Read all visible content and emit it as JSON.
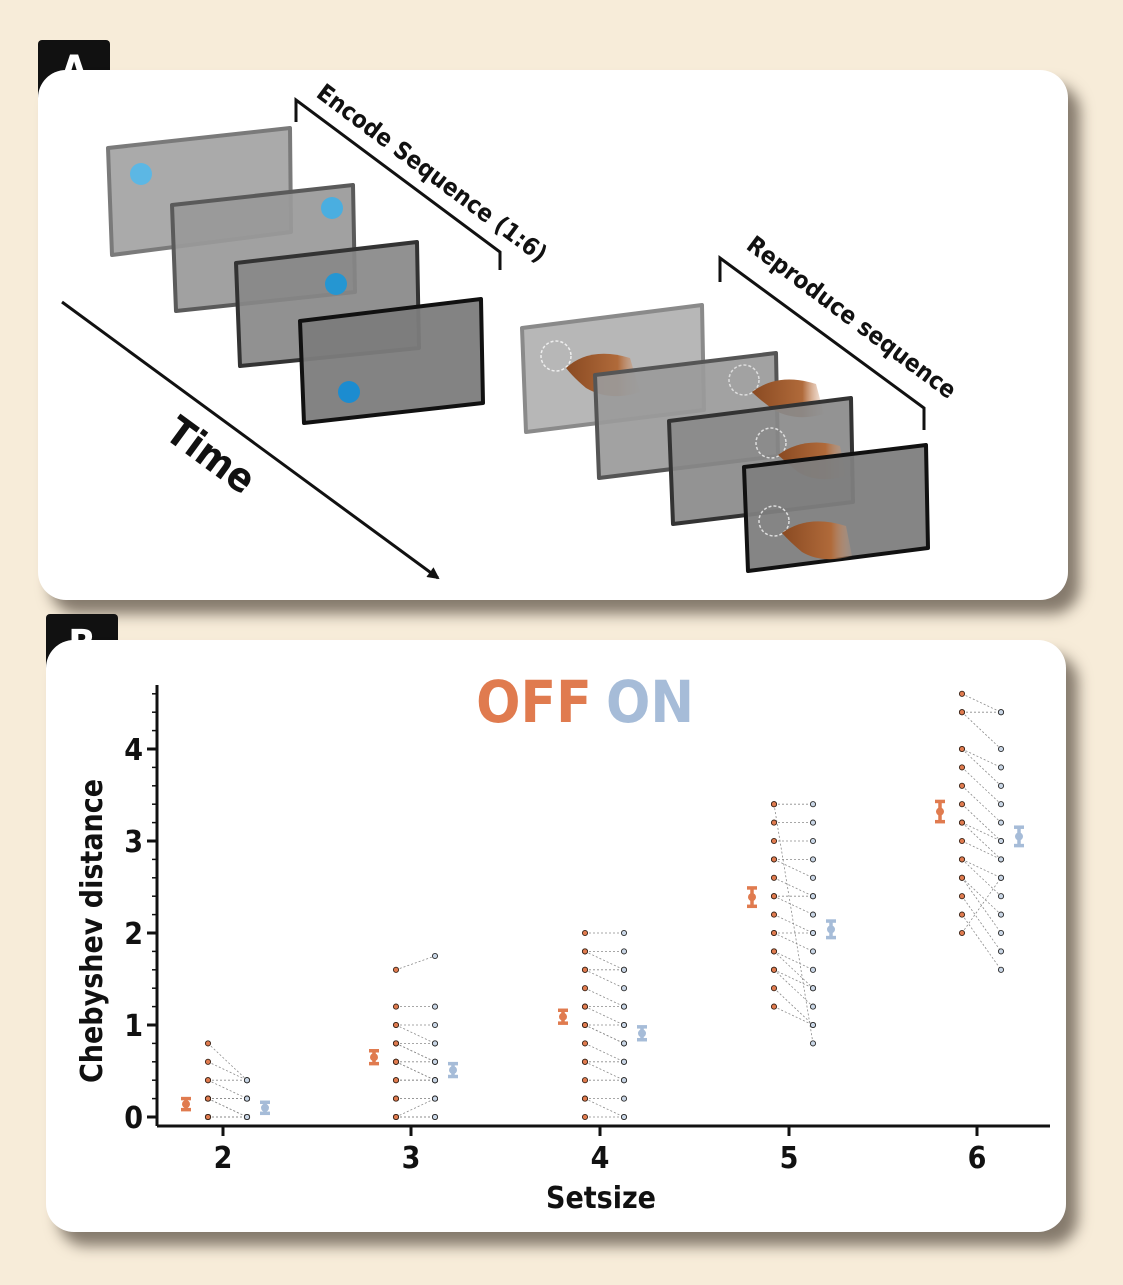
{
  "panel_a": {
    "badge": "A",
    "encode_label": "Encode Sequence (1:6)",
    "reproduce_label": "Reproduce sequence",
    "time_label": "Time"
  },
  "panel_b": {
    "badge": "B",
    "legend_off": "OFF",
    "legend_on": "ON"
  },
  "colors": {
    "off": "#e07b4f",
    "on": "#a6bcd8",
    "dot_blue": "#2596d2",
    "dot_light_blue": "#5cb7e4"
  },
  "chart_data": {
    "type": "scatter",
    "xlabel": "Setsize",
    "ylabel": "Chebyshev distance",
    "categories": [
      "2",
      "3",
      "4",
      "5",
      "6"
    ],
    "ylim": [
      0,
      4.6
    ],
    "yticks": [
      "0",
      "1",
      "2",
      "3",
      "4"
    ],
    "series": [
      {
        "name": "OFF",
        "mean": [
          0.14,
          0.65,
          1.09,
          2.39,
          3.32
        ],
        "err": [
          0.06,
          0.07,
          0.07,
          0.1,
          0.11
        ]
      },
      {
        "name": "ON",
        "mean": [
          0.1,
          0.51,
          0.91,
          2.04,
          3.05
        ],
        "err": [
          0.06,
          0.07,
          0.07,
          0.09,
          0.1
        ]
      }
    ],
    "subjects_off": [
      [
        0.8,
        0.6,
        0.4,
        0.4,
        0.2,
        0.2,
        0.2,
        0.2,
        0.2,
        0.2,
        0,
        0,
        0,
        0,
        0,
        0,
        0,
        0
      ],
      [
        1.6,
        1.2,
        1.0,
        1.0,
        0.8,
        0.8,
        0.8,
        0.6,
        0.6,
        0.6,
        0.4,
        0.4,
        0.2,
        0.2,
        0,
        0,
        0,
        0
      ],
      [
        2.0,
        1.8,
        1.8,
        1.6,
        1.6,
        1.4,
        1.2,
        1.2,
        1.0,
        1.0,
        1.0,
        0.8,
        0.6,
        0.6,
        0.4,
        0.2,
        0.2,
        0
      ],
      [
        3.4,
        3.2,
        3.0,
        2.8,
        2.8,
        2.6,
        2.4,
        2.4,
        2.2,
        2.0,
        2.0,
        1.8,
        1.8,
        1.6,
        1.6,
        1.4,
        1.2,
        3.4
      ],
      [
        4.6,
        4.4,
        4.4,
        4.0,
        4.0,
        3.8,
        3.6,
        3.4,
        3.2,
        3.2,
        3.0,
        2.8,
        2.8,
        2.6,
        2.6,
        2.4,
        2.2,
        2.0
      ]
    ],
    "subjects_on": [
      [
        0.4,
        0.4,
        0.4,
        0.2,
        0.2,
        0.2,
        0.2,
        0.2,
        0,
        0,
        0,
        0,
        0,
        0,
        0,
        0,
        0,
        0
      ],
      [
        1.75,
        1.2,
        1.0,
        0.8,
        0.8,
        0.6,
        0.6,
        0.6,
        0.4,
        0.4,
        0.4,
        0.4,
        0.2,
        0.2,
        0.2,
        0,
        0,
        0
      ],
      [
        2.0,
        1.8,
        1.6,
        1.6,
        1.4,
        1.2,
        1.2,
        1.0,
        1.0,
        0.8,
        0.8,
        0.6,
        0.6,
        0.4,
        0.4,
        0.2,
        0,
        0
      ],
      [
        3.4,
        3.2,
        3.0,
        2.8,
        2.6,
        2.4,
        2.4,
        2.2,
        2.0,
        2.0,
        1.8,
        1.6,
        1.4,
        1.4,
        1.2,
        1.0,
        1.0,
        0.8
      ],
      [
        4.4,
        4.4,
        4.0,
        3.8,
        3.6,
        3.4,
        3.2,
        3.0,
        3.0,
        2.8,
        2.8,
        2.6,
        2.4,
        2.2,
        2.0,
        1.8,
        1.6,
        2.6
      ]
    ]
  }
}
